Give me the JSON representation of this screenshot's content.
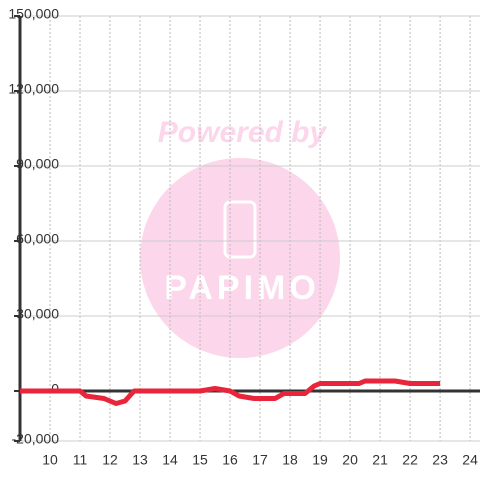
{
  "chart_data": {
    "type": "line",
    "watermark": {
      "top": "Powered by",
      "bottom": "PAPIMO"
    },
    "x": [
      9,
      10,
      11,
      11.2,
      11.8,
      12.2,
      12.5,
      12.8,
      13,
      14,
      15,
      15.5,
      16,
      16.3,
      16.8,
      17.5,
      17.8,
      18.5,
      18.8,
      19,
      20.3,
      20.5,
      21.5,
      22,
      23
    ],
    "series": [
      {
        "color": "#e8253a",
        "values": [
          0,
          0,
          0,
          -2000,
          -3000,
          -5000,
          -4000,
          0,
          0,
          0,
          0,
          1000,
          0,
          -2000,
          -3000,
          -3000,
          -1000,
          -1000,
          2000,
          3000,
          3000,
          4000,
          4000,
          3000,
          3000
        ]
      }
    ],
    "xlim": [
      9,
      24.33
    ],
    "xticks": [
      10,
      11,
      12,
      13,
      14,
      15,
      16,
      17,
      18,
      19,
      20,
      21,
      22,
      23,
      24
    ],
    "ylim": [
      -20000,
      150000
    ],
    "yticks": [
      {
        "value": -20000,
        "label": "-20,000"
      },
      0,
      {
        "value": 30000,
        "label": "30,000"
      },
      {
        "value": 60000,
        "label": "60,000"
      },
      {
        "value": 90000,
        "label": "90,000"
      },
      {
        "value": 120000,
        "label": "120,000"
      },
      {
        "value": 150000,
        "label": "150,000"
      }
    ],
    "grid": true
  }
}
